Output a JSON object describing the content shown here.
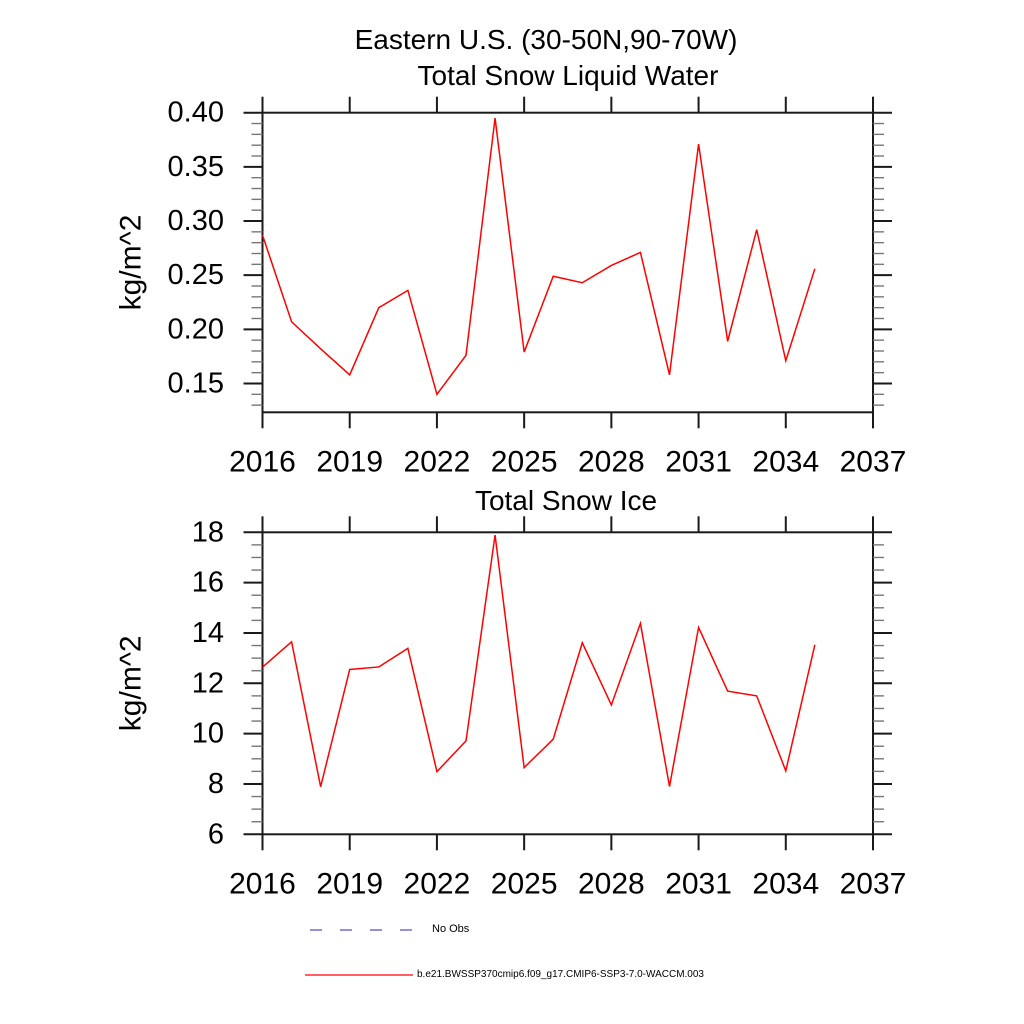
{
  "figure": {
    "main_title": "Eastern U.S. (30-50N,90-70W)",
    "background_color": "#ffffff",
    "text_color": "#000000"
  },
  "legend": {
    "items": [
      {
        "label": "No Obs",
        "line_style": "dashed",
        "color": "#6f6fd0"
      },
      {
        "label": "b.e21.BWSSP370cmip6.f09_g17.CMIP6-SSP3-7.0-WACCM.003",
        "line_style": "solid",
        "color": "#ff0000"
      }
    ]
  },
  "chart_data": [
    {
      "type": "line",
      "title": "Total Snow Liquid Water",
      "ylabel": "kg/m^2",
      "series_name": "b.e21.BWSSP370cmip6.f09_g17.CMIP6-SSP3-7.0-WACCM.003",
      "line_color": "#ff0000",
      "x": [
        2016,
        2017,
        2018,
        2019,
        2020,
        2021,
        2022,
        2023,
        2024,
        2025,
        2026,
        2027,
        2028,
        2029,
        2030,
        2031,
        2032,
        2033,
        2034,
        2035
      ],
      "values": [
        0.287,
        0.207,
        0.182,
        0.158,
        0.22,
        0.236,
        0.14,
        0.176,
        0.395,
        0.179,
        0.249,
        0.243,
        0.259,
        0.271,
        0.158,
        0.371,
        0.189,
        0.292,
        0.171,
        0.256
      ],
      "xlim": [
        2016,
        2037
      ],
      "ylim": [
        0.1234,
        0.4
      ],
      "xticks": [
        2016,
        2019,
        2022,
        2025,
        2028,
        2031,
        2034,
        2037
      ],
      "xtick_labels": [
        "2016",
        "2019",
        "2022",
        "2025",
        "2028",
        "2031",
        "2034",
        "2037"
      ],
      "yticks": [
        0.15,
        0.2,
        0.25,
        0.3,
        0.35,
        0.4
      ],
      "ytick_labels": [
        "0.15",
        "0.20",
        "0.25",
        "0.30",
        "0.35",
        "0.40"
      ],
      "yminor_step": 0.01,
      "grid": false,
      "legend_position": "below-figure"
    },
    {
      "type": "line",
      "title": "Total Snow Ice",
      "ylabel": "kg/m^2",
      "series_name": "b.e21.BWSSP370cmip6.f09_g17.CMIP6-SSP3-7.0-WACCM.003",
      "line_color": "#ff0000",
      "x": [
        2016,
        2017,
        2018,
        2019,
        2020,
        2021,
        2022,
        2023,
        2024,
        2025,
        2026,
        2027,
        2028,
        2029,
        2030,
        2031,
        2032,
        2033,
        2034,
        2035
      ],
      "values": [
        12.64,
        13.65,
        7.89,
        12.55,
        12.65,
        13.39,
        8.49,
        9.71,
        17.89,
        8.65,
        9.78,
        13.61,
        11.14,
        14.38,
        7.9,
        14.22,
        11.69,
        11.5,
        8.52,
        13.53
      ],
      "xlim": [
        2016,
        2037
      ],
      "ylim": [
        6,
        18
      ],
      "xticks": [
        2016,
        2019,
        2022,
        2025,
        2028,
        2031,
        2034,
        2037
      ],
      "xtick_labels": [
        "2016",
        "2019",
        "2022",
        "2025",
        "2028",
        "2031",
        "2034",
        "2037"
      ],
      "yticks": [
        6,
        8,
        10,
        12,
        14,
        16,
        18
      ],
      "ytick_labels": [
        "6",
        "8",
        "10",
        "12",
        "14",
        "16",
        "18"
      ],
      "yminor_step": 0.5,
      "grid": false,
      "legend_position": "below-figure"
    }
  ]
}
